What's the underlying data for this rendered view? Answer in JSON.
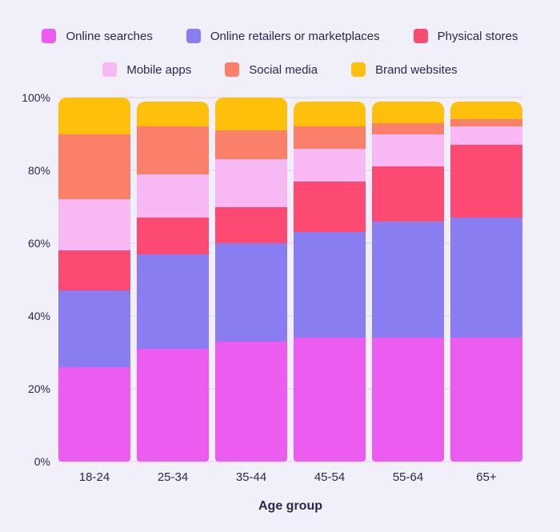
{
  "page": {
    "background_color": "#F1F0FA",
    "text_color": "#28284E",
    "gridline_color": "#E3E2F0"
  },
  "chart_data": {
    "type": "bar",
    "stacked": true,
    "orientation": "vertical",
    "unit": "%",
    "title": "",
    "xlabel": "Age group",
    "ylabel": "",
    "categories": [
      "18-24",
      "25-34",
      "35-44",
      "45-54",
      "55-64",
      "65+"
    ],
    "series": [
      {
        "name": "Online searches",
        "color": "#ED5CF0",
        "values": [
          26,
          31,
          33,
          34,
          34,
          34
        ]
      },
      {
        "name": "Online retailers or marketplaces",
        "color": "#8A7DF2",
        "values": [
          21,
          26,
          27,
          29,
          32,
          33
        ]
      },
      {
        "name": "Physical stores",
        "color": "#FC4A73",
        "values": [
          11,
          10,
          10,
          14,
          15,
          20
        ]
      },
      {
        "name": "Mobile apps",
        "color": "#F7B8F3",
        "values": [
          14,
          12,
          13,
          9,
          9,
          5
        ]
      },
      {
        "name": "Social media",
        "color": "#FA8069",
        "values": [
          18,
          13,
          8,
          6,
          3,
          2
        ]
      },
      {
        "name": "Brand websites",
        "color": "#FFC00C",
        "values": [
          10,
          7,
          9,
          7,
          6,
          5
        ]
      }
    ],
    "y_ticks": [
      {
        "label": "0%",
        "value": 0
      },
      {
        "label": "20%",
        "value": 20
      },
      {
        "label": "40%",
        "value": 40
      },
      {
        "label": "60%",
        "value": 60
      },
      {
        "label": "80%",
        "value": 80
      },
      {
        "label": "100%",
        "value": 100
      }
    ],
    "ylim": [
      0,
      100
    ],
    "grid": true,
    "legend_position": "top",
    "legend_rows": [
      [
        0,
        1,
        2
      ],
      [
        3,
        4,
        5
      ]
    ]
  }
}
